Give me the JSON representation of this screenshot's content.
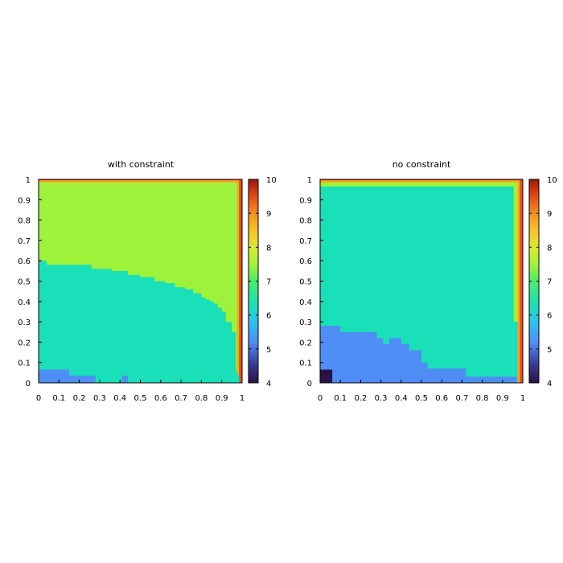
{
  "chart_data": [
    {
      "type": "heatmap",
      "title": "with constraint",
      "xlabel": "",
      "ylabel": "",
      "xlim": [
        0,
        1
      ],
      "ylim": [
        0,
        1
      ],
      "xticks": [
        "0",
        "0.1",
        "0.2",
        "0.3",
        "0.4",
        "0.5",
        "0.6",
        "0.7",
        "0.8",
        "0.9",
        "1"
      ],
      "yticks": [
        "0",
        "0.1",
        "0.2",
        "0.3",
        "0.4",
        "0.5",
        "0.6",
        "0.7",
        "0.8",
        "0.9",
        "1"
      ],
      "colorbar": {
        "range": [
          4,
          10
        ],
        "ticks": [
          "4",
          "5",
          "6",
          "7",
          "8",
          "9",
          "10"
        ]
      },
      "regions": [
        {
          "name": "band-lowest",
          "value": 5.1,
          "color": "#4f8ef5",
          "x": [
            0.0,
            0.15,
            0.15,
            0.28,
            0.28,
            0.41,
            0.41,
            0.43,
            0.43,
            0.96,
            0.96,
            0.0
          ],
          "y": [
            0.0,
            0.0,
            0.0,
            0.0,
            0.0,
            0.0,
            0.0,
            0.0,
            0.0,
            0.0,
            0.0,
            0.0
          ]
        },
        {
          "name": "band-middle",
          "value": 6.2,
          "color": "#19e0b8",
          "boundary": [
            [
              0,
              0.06
            ],
            [
              0.15,
              0.06
            ],
            [
              0.15,
              0.035
            ],
            [
              0.28,
              0.035
            ],
            [
              0.28,
              0.0
            ],
            [
              0.96,
              0.0
            ],
            [
              0.96,
              0.6
            ],
            [
              0,
              0.6
            ]
          ]
        },
        {
          "name": "band-upper",
          "value": 7.5,
          "color": "#9ff23a"
        },
        {
          "name": "edge",
          "value": 8.5,
          "color": "#f5a623"
        }
      ],
      "middle_top_boundary": {
        "x": [
          0.0,
          0.04,
          0.04,
          0.26,
          0.26,
          0.36,
          0.36,
          0.44,
          0.44,
          0.5,
          0.5,
          0.57,
          0.57,
          0.62,
          0.62,
          0.67,
          0.67,
          0.72,
          0.72,
          0.76,
          0.76,
          0.8,
          0.8,
          0.82,
          0.82,
          0.84,
          0.84,
          0.86,
          0.86,
          0.88,
          0.88,
          0.9,
          0.9,
          0.92,
          0.92,
          0.95,
          0.95,
          0.96
        ],
        "y": [
          0.6,
          0.6,
          0.58,
          0.58,
          0.56,
          0.56,
          0.55,
          0.55,
          0.53,
          0.53,
          0.52,
          0.52,
          0.5,
          0.5,
          0.49,
          0.49,
          0.47,
          0.47,
          0.46,
          0.46,
          0.44,
          0.44,
          0.42,
          0.42,
          0.41,
          0.41,
          0.4,
          0.4,
          0.39,
          0.39,
          0.37,
          0.37,
          0.35,
          0.35,
          0.3,
          0.3,
          0.25,
          0.25
        ]
      }
    },
    {
      "type": "heatmap",
      "title": "no constraint",
      "xlabel": "",
      "ylabel": "",
      "xlim": [
        0,
        1
      ],
      "ylim": [
        0,
        1
      ],
      "xticks": [
        "0",
        "0.1",
        "0.2",
        "0.3",
        "0.4",
        "0.5",
        "0.6",
        "0.7",
        "0.8",
        "0.9",
        "1"
      ],
      "yticks": [
        "0",
        "0.1",
        "0.2",
        "0.3",
        "0.4",
        "0.5",
        "0.6",
        "0.7",
        "0.8",
        "0.9",
        "1"
      ],
      "colorbar": {
        "range": [
          4,
          10
        ],
        "ticks": [
          "4",
          "5",
          "6",
          "7",
          "8",
          "9",
          "10"
        ]
      },
      "regions": [
        {
          "name": "corner-low",
          "value": 4.1,
          "color": "#2a1244"
        },
        {
          "name": "band-lowest",
          "value": 5.1,
          "color": "#4f8ef5"
        },
        {
          "name": "band-middle",
          "value": 6.2,
          "color": "#19e0b8"
        },
        {
          "name": "band-upper",
          "value": 7.5,
          "color": "#9ff23a"
        },
        {
          "name": "edge",
          "value": 8.5,
          "color": "#f5a623"
        }
      ],
      "lowest_top_boundary": {
        "x": [
          0.0,
          0.1,
          0.1,
          0.28,
          0.28,
          0.31,
          0.31,
          0.34,
          0.34,
          0.4,
          0.4,
          0.44,
          0.44,
          0.5,
          0.5,
          0.53,
          0.53,
          0.72,
          0.72,
          0.97
        ],
        "y": [
          0.28,
          0.28,
          0.25,
          0.25,
          0.22,
          0.22,
          0.19,
          0.19,
          0.22,
          0.22,
          0.19,
          0.19,
          0.16,
          0.16,
          0.1,
          0.1,
          0.07,
          0.07,
          0.03,
          0.03
        ]
      }
    }
  ]
}
